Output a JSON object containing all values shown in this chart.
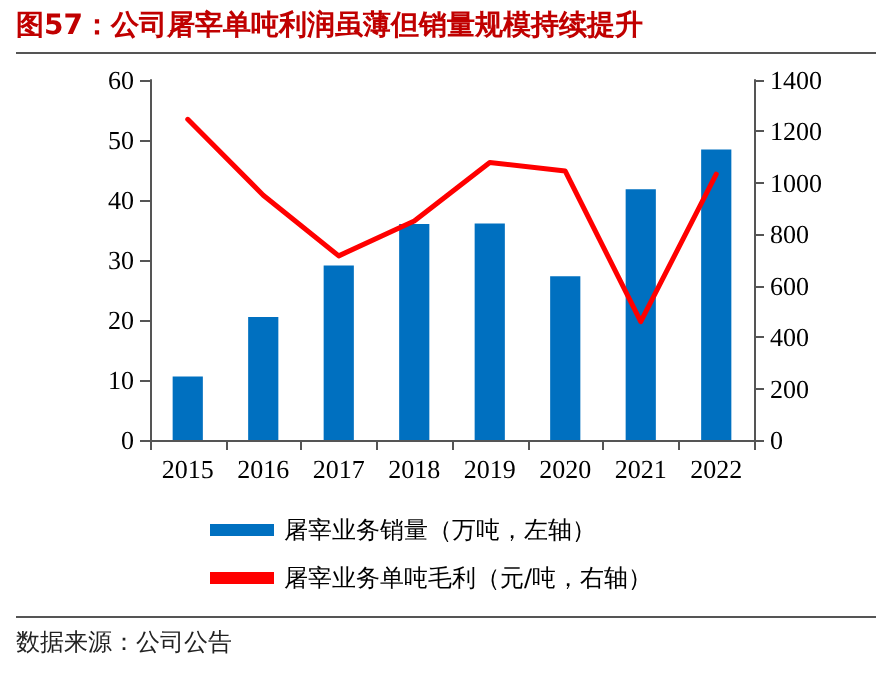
{
  "chart_data": {
    "type": "bar",
    "title": "图57：公司屠宰单吨利润虽薄但销量规模持续提升",
    "categories": [
      "2015",
      "2016",
      "2017",
      "2018",
      "2019",
      "2020",
      "2021",
      "2022"
    ],
    "series": [
      {
        "name": "屠宰业务销量（万吨，左轴）",
        "color": "#0070c0",
        "values": [
          10.6,
          20.5,
          29.1,
          36.0,
          36.1,
          27.3,
          41.8,
          48.4
        ]
      },
      {
        "name": "屠宰业务单吨毛利（元/吨，右轴）",
        "type": "line",
        "axis": "y2",
        "color": "#ff0000",
        "values": [
          1247,
          952,
          716,
          852,
          1079,
          1046,
          460,
          1034
        ]
      }
    ],
    "ylim": [
      0,
      60
    ],
    "yticks": [
      0,
      10,
      20,
      30,
      40,
      50,
      60
    ],
    "y2lim": [
      0,
      1400
    ],
    "y2ticks": [
      0,
      200,
      400,
      600,
      800,
      1000,
      1200,
      1400
    ],
    "grid": false,
    "legend": "bottom",
    "marker": "none",
    "line_style": "solid",
    "annotations": [
      "数据来源：公司公告"
    ]
  }
}
